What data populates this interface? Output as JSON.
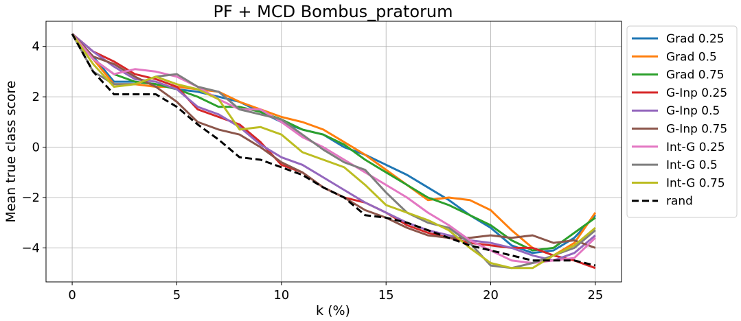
{
  "chart_data": {
    "type": "line",
    "title": "PF + MCD Bombus_pratorum",
    "xlabel": "k (%)",
    "ylabel": "Mean true class score",
    "xlim": [
      -1.25,
      26.25
    ],
    "ylim": [
      -5.35,
      5.0
    ],
    "xticks": [
      0,
      5,
      10,
      15,
      20,
      25
    ],
    "yticks": [
      -4,
      -2,
      0,
      2,
      4
    ],
    "xtick_labels": [
      "0",
      "5",
      "10",
      "15",
      "20",
      "25"
    ],
    "ytick_labels": [
      "−4",
      "−2",
      "0",
      "2",
      "4"
    ],
    "grid": true,
    "legend_position": "outside-right",
    "series": [
      {
        "name": "Grad 0.25",
        "color": "#1f77b4",
        "dash": "solid",
        "x": [
          0,
          1,
          2,
          3,
          4,
          5,
          6,
          7,
          8,
          9,
          10,
          11,
          12,
          13,
          14,
          15,
          16,
          17,
          18,
          19,
          20,
          21,
          22,
          23,
          24,
          25
        ],
        "y": [
          4.5,
          3.6,
          2.6,
          2.6,
          2.5,
          2.3,
          2.2,
          2.0,
          1.8,
          1.4,
          1.0,
          0.7,
          0.5,
          0.0,
          -0.3,
          -0.7,
          -1.1,
          -1.6,
          -2.1,
          -2.7,
          -3.2,
          -3.9,
          -4.2,
          -4.1,
          -3.6,
          -2.7
        ]
      },
      {
        "name": "Grad 0.5",
        "color": "#ff7f0e",
        "dash": "solid",
        "x": [
          0,
          1,
          2,
          3,
          4,
          5,
          6,
          7,
          8,
          9,
          10,
          11,
          12,
          13,
          14,
          15,
          16,
          17,
          18,
          19,
          20,
          21,
          22,
          23,
          24,
          25
        ],
        "y": [
          4.5,
          3.5,
          2.5,
          2.5,
          2.4,
          2.4,
          2.3,
          2.2,
          1.8,
          1.5,
          1.2,
          1.0,
          0.7,
          0.2,
          -0.3,
          -0.9,
          -1.5,
          -2.1,
          -2.0,
          -2.1,
          -2.5,
          -3.3,
          -4.0,
          -4.3,
          -3.8,
          -2.6
        ]
      },
      {
        "name": "Grad 0.75",
        "color": "#2ca02c",
        "dash": "solid",
        "x": [
          0,
          1,
          2,
          3,
          4,
          5,
          6,
          7,
          8,
          9,
          10,
          11,
          12,
          13,
          14,
          15,
          16,
          17,
          18,
          19,
          20,
          21,
          22,
          23,
          24,
          25
        ],
        "y": [
          4.5,
          3.5,
          2.9,
          2.6,
          2.5,
          2.3,
          2.0,
          1.6,
          1.6,
          1.4,
          1.1,
          0.7,
          0.5,
          0.1,
          -0.5,
          -1.0,
          -1.5,
          -2.0,
          -2.3,
          -2.7,
          -3.1,
          -3.7,
          -4.1,
          -4.0,
          -3.4,
          -2.8
        ]
      },
      {
        "name": "G-Inp 0.25",
        "color": "#d62728",
        "dash": "solid",
        "x": [
          0,
          1,
          2,
          3,
          4,
          5,
          6,
          7,
          8,
          9,
          10,
          11,
          12,
          13,
          14,
          15,
          16,
          17,
          18,
          19,
          20,
          21,
          22,
          23,
          24,
          25
        ],
        "y": [
          4.5,
          3.8,
          3.4,
          2.9,
          2.7,
          2.4,
          1.5,
          1.2,
          0.9,
          0.2,
          -0.7,
          -1.0,
          -1.6,
          -2.0,
          -2.2,
          -2.6,
          -3.1,
          -3.4,
          -3.6,
          -3.8,
          -3.9,
          -4.0,
          -4.0,
          -4.3,
          -4.5,
          -4.8
        ]
      },
      {
        "name": "G-Inp 0.5",
        "color": "#9467bd",
        "dash": "solid",
        "x": [
          0,
          1,
          2,
          3,
          4,
          5,
          6,
          7,
          8,
          9,
          10,
          11,
          12,
          13,
          14,
          15,
          16,
          17,
          18,
          19,
          20,
          21,
          22,
          23,
          24,
          25
        ],
        "y": [
          4.5,
          3.8,
          3.2,
          2.7,
          2.6,
          2.3,
          1.6,
          1.3,
          0.8,
          0.1,
          -0.4,
          -0.7,
          -1.2,
          -1.7,
          -2.2,
          -2.6,
          -3.0,
          -3.3,
          -3.5,
          -3.7,
          -3.8,
          -4.0,
          -4.3,
          -4.5,
          -4.2,
          -3.5
        ]
      },
      {
        "name": "G-Inp 0.75",
        "color": "#8c564b",
        "dash": "solid",
        "x": [
          0,
          1,
          2,
          3,
          4,
          5,
          6,
          7,
          8,
          9,
          10,
          11,
          12,
          13,
          14,
          15,
          16,
          17,
          18,
          19,
          20,
          21,
          22,
          23,
          24,
          25
        ],
        "y": [
          4.5,
          3.6,
          3.3,
          2.8,
          2.4,
          1.8,
          1.0,
          0.7,
          0.5,
          0.0,
          -0.6,
          -1.0,
          -1.6,
          -2.0,
          -2.5,
          -2.8,
          -3.2,
          -3.5,
          -3.6,
          -3.6,
          -3.5,
          -3.6,
          -3.5,
          -3.8,
          -3.7,
          -4.0
        ]
      },
      {
        "name": "Int-G 0.25",
        "color": "#e377c2",
        "dash": "solid",
        "x": [
          0,
          1,
          2,
          3,
          4,
          5,
          6,
          7,
          8,
          9,
          10,
          11,
          12,
          13,
          14,
          15,
          16,
          17,
          18,
          19,
          20,
          21,
          22,
          23,
          24,
          25
        ],
        "y": [
          4.5,
          3.5,
          2.9,
          3.1,
          3.0,
          2.8,
          2.4,
          1.9,
          1.5,
          1.5,
          1.0,
          0.4,
          0.0,
          -0.5,
          -1.0,
          -1.5,
          -2.0,
          -2.6,
          -3.1,
          -3.7,
          -4.1,
          -4.5,
          -4.6,
          -4.5,
          -4.4,
          -3.6
        ]
      },
      {
        "name": "Int-G 0.5",
        "color": "#7f7f7f",
        "dash": "solid",
        "x": [
          0,
          1,
          2,
          3,
          4,
          5,
          6,
          7,
          8,
          9,
          10,
          11,
          12,
          13,
          14,
          15,
          16,
          17,
          18,
          19,
          20,
          21,
          22,
          23,
          24,
          25
        ],
        "y": [
          4.5,
          3.0,
          2.5,
          2.5,
          2.8,
          2.9,
          2.4,
          2.2,
          1.5,
          1.3,
          1.1,
          0.5,
          -0.1,
          -0.6,
          -0.9,
          -1.8,
          -2.6,
          -3.0,
          -3.2,
          -3.8,
          -4.7,
          -4.8,
          -4.6,
          -4.3,
          -4.0,
          -3.3
        ]
      },
      {
        "name": "Int-G 0.75",
        "color": "#bcbd22",
        "dash": "solid",
        "x": [
          0,
          1,
          2,
          3,
          4,
          5,
          6,
          7,
          8,
          9,
          10,
          11,
          12,
          13,
          14,
          15,
          16,
          17,
          18,
          19,
          20,
          21,
          22,
          23,
          24,
          25
        ],
        "y": [
          4.5,
          3.3,
          2.4,
          2.5,
          2.8,
          2.5,
          2.3,
          1.9,
          0.7,
          0.8,
          0.5,
          -0.2,
          -0.5,
          -0.8,
          -1.5,
          -2.3,
          -2.6,
          -2.9,
          -3.3,
          -4.0,
          -4.6,
          -4.8,
          -4.8,
          -4.3,
          -3.9,
          -3.2
        ]
      },
      {
        "name": "rand",
        "color": "#000000",
        "dash": "dashed",
        "x": [
          0,
          1,
          2,
          3,
          4,
          5,
          6,
          7,
          8,
          9,
          10,
          11,
          12,
          13,
          14,
          15,
          16,
          17,
          18,
          19,
          20,
          21,
          22,
          23,
          24,
          25
        ],
        "y": [
          4.5,
          3.0,
          2.1,
          2.1,
          2.1,
          1.6,
          0.9,
          0.3,
          -0.4,
          -0.5,
          -0.8,
          -1.1,
          -1.6,
          -2.0,
          -2.7,
          -2.8,
          -3.0,
          -3.3,
          -3.6,
          -3.9,
          -4.1,
          -4.3,
          -4.5,
          -4.5,
          -4.5,
          -4.7
        ]
      }
    ]
  }
}
